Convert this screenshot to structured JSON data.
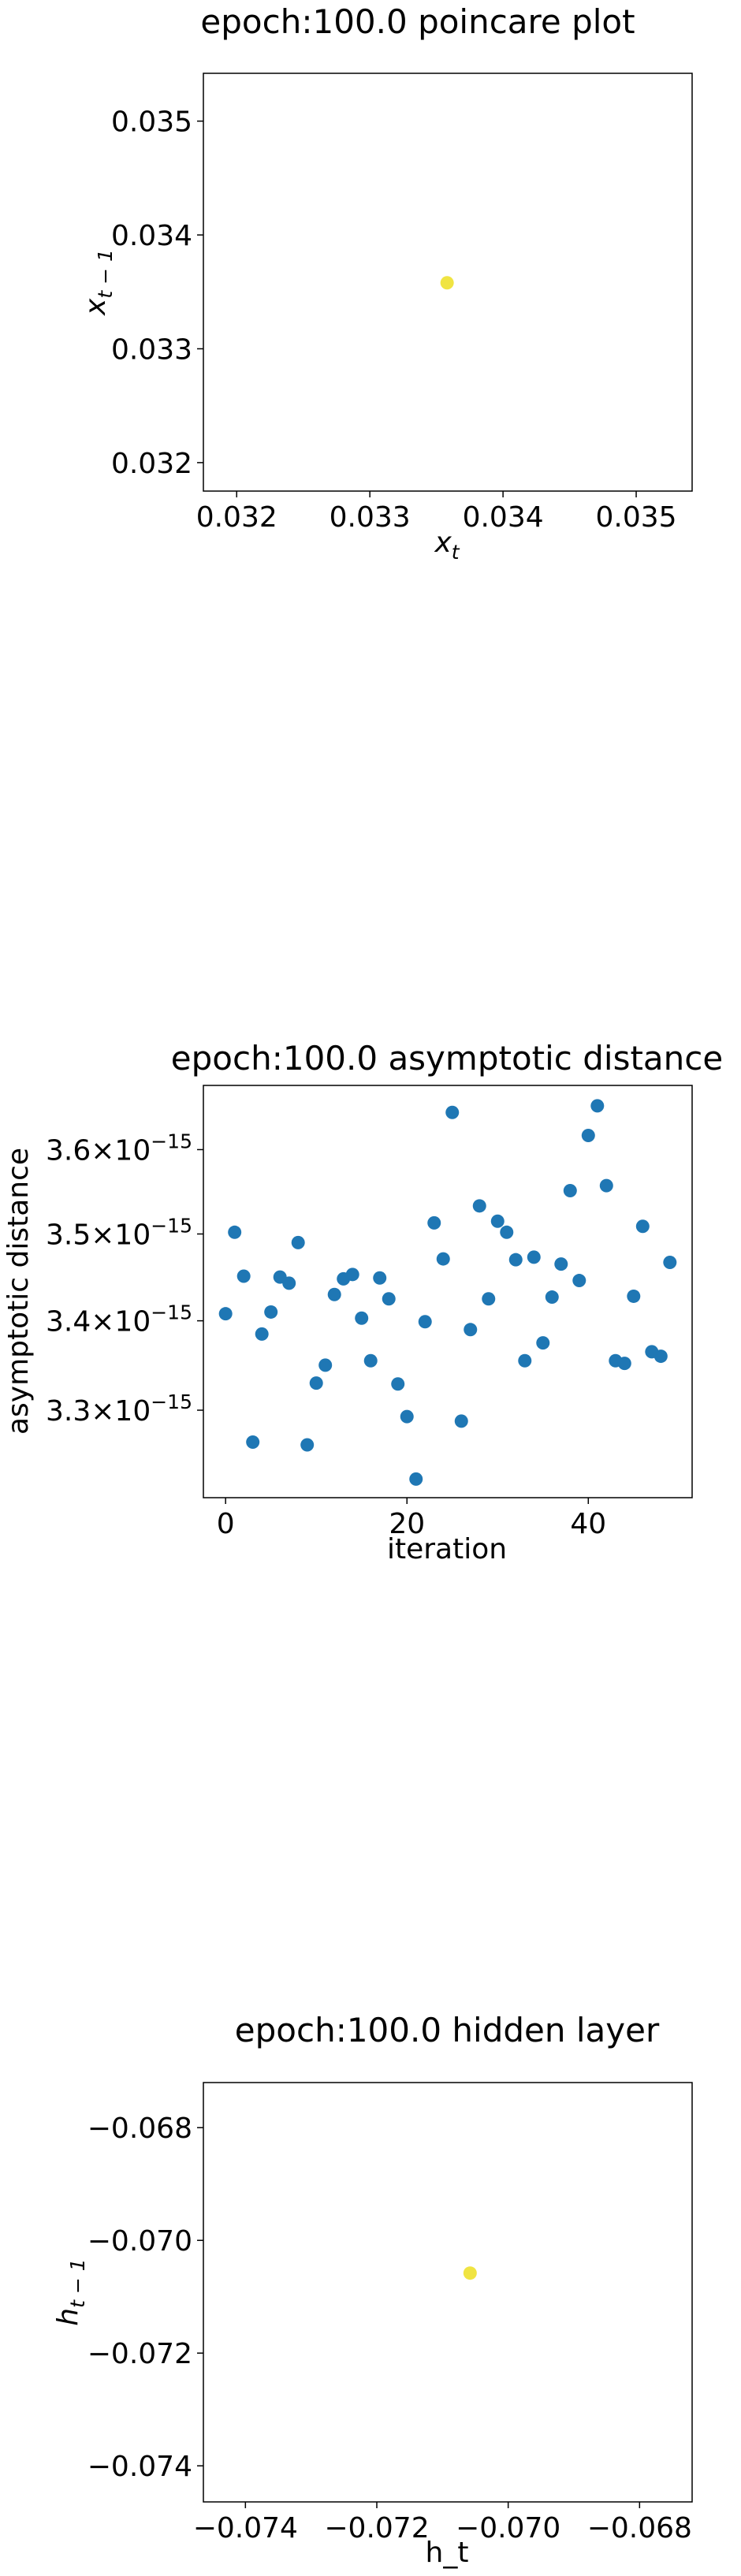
{
  "chart_data": [
    {
      "type": "scatter",
      "title": "epoch:100.0 poincare plot",
      "xlabel_base": "x",
      "xlabel_sub": "t",
      "ylabel_base": "x",
      "ylabel_sub": "t − 1",
      "xlim": [
        0.03175,
        0.03542
      ],
      "ylim": [
        0.03175,
        0.03542
      ],
      "xticks": [
        0.032,
        0.033,
        0.034,
        0.035
      ],
      "xtick_labels": [
        "0.032",
        "0.033",
        "0.034",
        "0.035"
      ],
      "yticks": [
        0.032,
        0.033,
        0.034,
        0.035
      ],
      "ytick_labels": [
        "0.032",
        "0.033",
        "0.034",
        "0.035"
      ],
      "marker_color": "#f0e442",
      "points": [
        {
          "x": 0.03358,
          "y": 0.03358
        }
      ],
      "grid": false,
      "legend": "none"
    },
    {
      "type": "scatter",
      "title": "epoch:100.0 asymptotic distance",
      "xlabel": "iteration",
      "ylabel": "asymptotic distance",
      "xlim": [
        -2.45,
        51.45
      ],
      "ylim": [
        3.205e-15,
        3.678e-15
      ],
      "xticks": [
        0,
        20,
        40
      ],
      "xtick_labels": [
        "0",
        "20",
        "40"
      ],
      "yticks": [
        3.3e-15,
        3.4e-15,
        3.5e-15,
        3.6e-15
      ],
      "ytick_mantissas": [
        "3.3",
        "3.4",
        "3.5",
        "3.6"
      ],
      "ytick_times": "×",
      "ytick_base": "10",
      "ytick_exponent": "−15",
      "log_scale_y": true,
      "marker_color": "#1f77b4",
      "x": [
        0,
        1,
        2,
        3,
        4,
        5,
        6,
        7,
        8,
        9,
        10,
        11,
        12,
        13,
        14,
        15,
        16,
        17,
        18,
        19,
        20,
        21,
        22,
        23,
        24,
        25,
        26,
        27,
        28,
        29,
        30,
        31,
        32,
        33,
        34,
        35,
        36,
        37,
        38,
        39,
        40,
        41,
        42,
        43,
        44,
        45,
        46,
        47,
        48,
        49
      ],
      "y": [
        3.408e-15,
        3.502e-15,
        3.451e-15,
        3.265e-15,
        3.385e-15,
        3.41e-15,
        3.45e-15,
        3.443e-15,
        3.49e-15,
        3.262e-15,
        3.33e-15,
        3.35e-15,
        3.43e-15,
        3.448e-15,
        3.453e-15,
        3.403e-15,
        3.355e-15,
        3.449e-15,
        3.425e-15,
        3.329e-15,
        3.293e-15,
        3.225e-15,
        3.399e-15,
        3.513e-15,
        3.471e-15,
        3.645e-15,
        3.288e-15,
        3.39e-15,
        3.533e-15,
        3.425e-15,
        3.515e-15,
        3.502e-15,
        3.47e-15,
        3.355e-15,
        3.473e-15,
        3.375e-15,
        3.427e-15,
        3.465e-15,
        3.551e-15,
        3.446e-15,
        3.617e-15,
        3.653e-15,
        3.557e-15,
        3.355e-15,
        3.352e-15,
        3.428e-15,
        3.509e-15,
        3.365e-15,
        3.36e-15,
        3.467e-15
      ],
      "grid": false,
      "legend": "none"
    },
    {
      "type": "scatter",
      "title": "epoch:100.0 hidden layer",
      "xlabel": "h_t",
      "ylabel_base": "h",
      "ylabel_sub": "t − 1",
      "xlim": [
        -0.07464,
        -0.0672
      ],
      "ylim": [
        -0.07464,
        -0.0672
      ],
      "xticks": [
        -0.074,
        -0.072,
        -0.07,
        -0.068
      ],
      "xtick_labels": [
        "−0.074",
        "−0.072",
        "−0.070",
        "−0.068"
      ],
      "yticks": [
        -0.074,
        -0.072,
        -0.07,
        -0.068
      ],
      "ytick_labels": [
        "−0.074",
        "−0.072",
        "−0.070",
        "−0.068"
      ],
      "marker_color": "#f0e442",
      "points": [
        {
          "x": -0.07058,
          "y": -0.07058
        }
      ],
      "grid": false,
      "legend": "none"
    }
  ]
}
